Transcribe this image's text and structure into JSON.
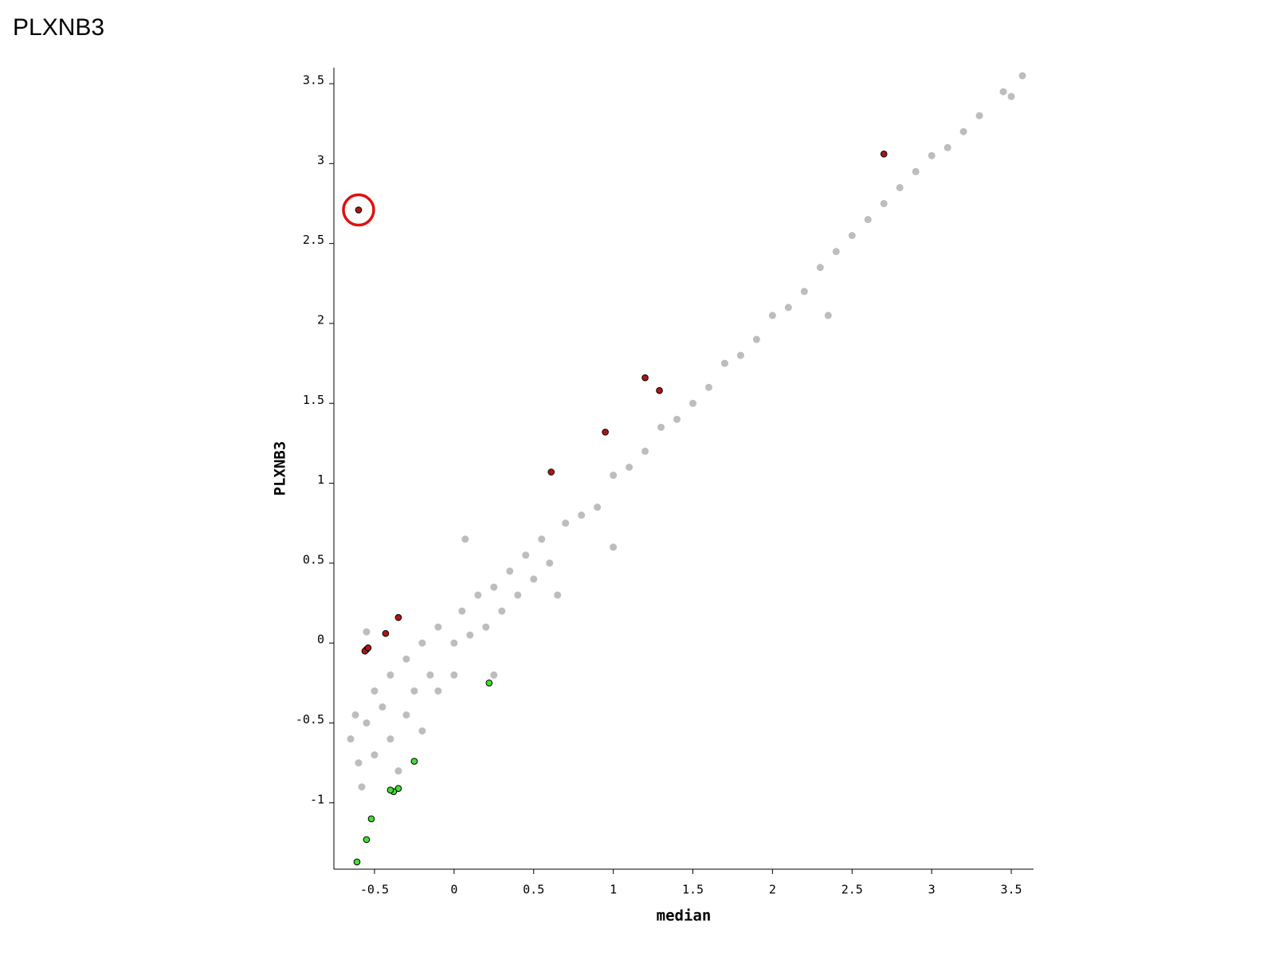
{
  "chart_data": {
    "type": "scatter",
    "title": "PLXNB3",
    "xlabel": "median",
    "ylabel": "PLXNB3",
    "xlim": [
      -0.755,
      3.64
    ],
    "ylim": [
      -1.415,
      3.6
    ],
    "xticks": [
      -0.5,
      0,
      0.5,
      1,
      1.5,
      2,
      2.5,
      3,
      3.5
    ],
    "yticks": [
      -1,
      -0.5,
      0,
      0.5,
      1,
      1.5,
      2,
      2.5,
      3,
      3.5
    ],
    "grid": false,
    "series": [
      {
        "color": "#bdbdbd",
        "x": [
          -0.65,
          -0.62,
          -0.6,
          -0.58,
          -0.55,
          -0.5,
          -0.5,
          -0.45,
          -0.4,
          -0.4,
          -0.35,
          -0.3,
          -0.3,
          -0.25,
          -0.2,
          -0.2,
          -0.15,
          -0.1,
          -0.1,
          0,
          0,
          0.05,
          0.1,
          0.15,
          0.2,
          0.25,
          0.3,
          0.35,
          0.4,
          0.45,
          0.5,
          0.55,
          0.6,
          0.7,
          0.8,
          0.9,
          1.0,
          1.1,
          1.2,
          1.3,
          1.4,
          1.5,
          1.6,
          1.7,
          1.8,
          1.9,
          2.0,
          2.1,
          2.2,
          2.35,
          2.3,
          2.4,
          2.5,
          2.6,
          2.7,
          2.8,
          2.9,
          3.0,
          3.1,
          3.2,
          3.3,
          3.45,
          3.5,
          3.57,
          0.07,
          -0.55,
          0.65,
          1.0,
          0.25
        ],
        "y": [
          -0.6,
          -0.45,
          -0.75,
          -0.9,
          -0.5,
          -0.3,
          -0.7,
          -0.4,
          -0.2,
          -0.6,
          -0.8,
          -0.1,
          -0.45,
          -0.3,
          0.0,
          -0.55,
          -0.2,
          0.1,
          -0.3,
          0,
          -0.2,
          0.2,
          0.05,
          0.3,
          0.1,
          0.35,
          0.2,
          0.45,
          0.3,
          0.55,
          0.4,
          0.65,
          0.5,
          0.75,
          0.8,
          0.85,
          1.05,
          1.1,
          1.2,
          1.35,
          1.4,
          1.5,
          1.6,
          1.75,
          1.8,
          1.9,
          2.05,
          2.1,
          2.2,
          2.05,
          2.35,
          2.45,
          2.55,
          2.65,
          2.75,
          2.85,
          2.95,
          3.05,
          3.1,
          3.2,
          3.3,
          3.45,
          3.42,
          3.55,
          0.65,
          0.07,
          0.3,
          0.6,
          -0.2
        ]
      },
      {
        "color": "#b01515",
        "x": [
          -0.6,
          2.7,
          1.2,
          1.29,
          0.95,
          0.61,
          -0.35,
          -0.43,
          -0.55,
          -0.56,
          -0.54
        ],
        "y": [
          2.71,
          3.06,
          1.66,
          1.58,
          1.32,
          1.07,
          0.16,
          0.06,
          -0.04,
          -0.05,
          -0.03
        ]
      },
      {
        "color": "#44dd33",
        "x": [
          0.22,
          -0.25,
          -0.35,
          -0.38,
          -0.4,
          -0.52,
          -0.55,
          -0.61
        ],
        "y": [
          -0.25,
          -0.74,
          -0.91,
          -0.93,
          -0.92,
          -1.1,
          -1.23,
          -1.37
        ]
      }
    ]
  }
}
